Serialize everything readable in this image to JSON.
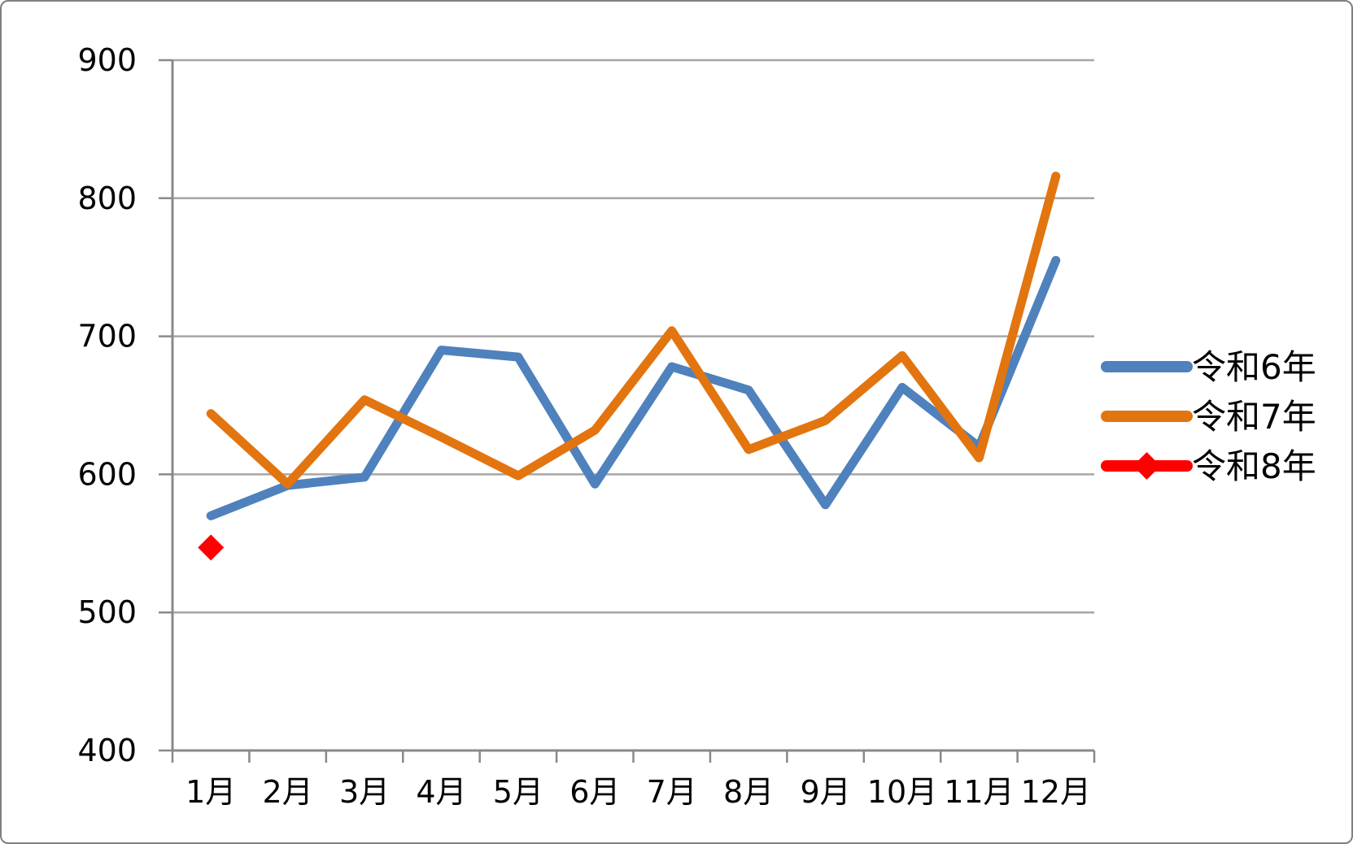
{
  "chart": {
    "background": "#FFFFFF",
    "border_color": "#7F7F7F"
  },
  "chart_data": {
    "type": "line",
    "title": "",
    "xlabel": "",
    "ylabel": "",
    "categories": [
      "1月",
      "2月",
      "3月",
      "4月",
      "5月",
      "6月",
      "7月",
      "8月",
      "9月",
      "10月",
      "11月",
      "12月"
    ],
    "series": [
      {
        "name": "令和6年",
        "color": "#4F81BD",
        "marker": "none",
        "values": [
          570,
          592,
          598,
          690,
          685,
          593,
          678,
          661,
          578,
          663,
          620,
          755
        ]
      },
      {
        "name": "令和7年",
        "color": "#E2750F",
        "marker": "none",
        "values": [
          644,
          593,
          654,
          627,
          599,
          632,
          704,
          618,
          639,
          686,
          612,
          816
        ]
      },
      {
        "name": "令和8年",
        "color": "#FF0000",
        "marker": "diamond",
        "values": [
          547,
          null,
          null,
          null,
          null,
          null,
          null,
          null,
          null,
          null,
          null,
          null
        ]
      }
    ],
    "ylim": [
      400,
      900
    ],
    "ytick_step": 100,
    "yticks": [
      "400",
      "500",
      "600",
      "700",
      "800",
      "900"
    ],
    "grid": true,
    "legend_position": "right",
    "gridline_color": "#A6A6A6",
    "axis_color": "#898989",
    "text_color": "#000000"
  }
}
